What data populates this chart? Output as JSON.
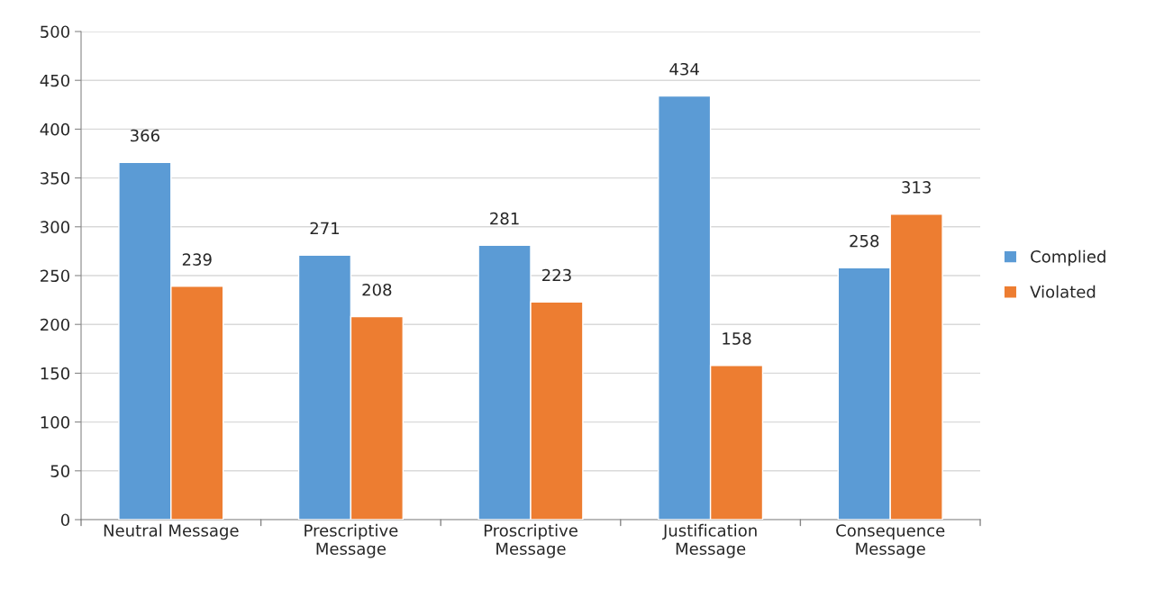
{
  "chart_data": {
    "type": "bar",
    "categories": [
      "Neutral Message",
      "Prescriptive\nMessage",
      "Proscriptive\nMessage",
      "Justification\nMessage",
      "Consequence\nMessage"
    ],
    "series": [
      {
        "name": "Complied",
        "color": "#5b9bd5",
        "values": [
          366,
          271,
          281,
          434,
          258
        ]
      },
      {
        "name": "Violated",
        "color": "#ed7d31",
        "values": [
          239,
          208,
          223,
          158,
          313
        ]
      }
    ],
    "ylim": [
      0,
      500
    ],
    "yticks": [
      0,
      50,
      100,
      150,
      200,
      250,
      300,
      350,
      400,
      450,
      500
    ],
    "grid": "y",
    "legend": "right",
    "data_labels": true
  }
}
